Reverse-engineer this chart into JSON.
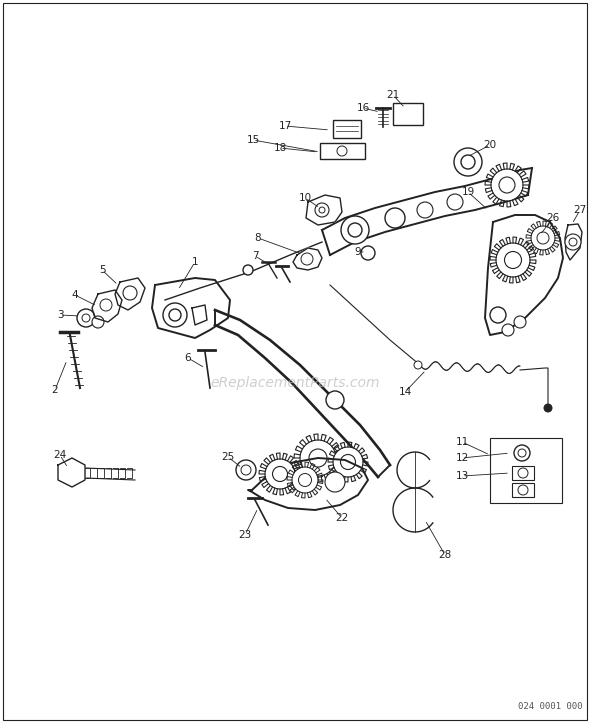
{
  "background_color": "#ffffff",
  "border_color": "#000000",
  "watermark_text": "eReplacementParts.com",
  "watermark_color": "#bbbbbb",
  "part_number_code": "024 0001 000",
  "fig_width": 5.9,
  "fig_height": 7.23,
  "dpi": 100
}
